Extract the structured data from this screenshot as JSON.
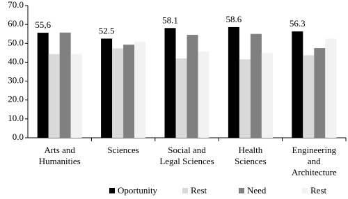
{
  "chart_data": {
    "type": "bar",
    "categories": [
      "Arts and\nHumanities",
      "Sciences",
      "Social and\nLegal Sciences",
      "Health\nSciences",
      "Engineering\nand\nArchitecture"
    ],
    "series": [
      {
        "name": "Oportunity",
        "color": "#000000",
        "values": [
          55.6,
          52.5,
          58.1,
          58.6,
          56.3
        ],
        "value_labels": [
          "55,6",
          "52.5",
          "58.1",
          "58.6",
          "56.3"
        ]
      },
      {
        "name": "Rest",
        "color": "#d9d9d9",
        "values": [
          44.3,
          47.3,
          42.0,
          41.5,
          43.7
        ]
      },
      {
        "name": "Need",
        "color": "#808080",
        "values": [
          55.7,
          49.3,
          54.5,
          55.0,
          47.5
        ]
      },
      {
        "name": "Rest",
        "color": "#f2f2f2",
        "values": [
          44.3,
          50.8,
          45.7,
          45.0,
          52.5
        ]
      }
    ],
    "ylim": [
      0,
      70
    ],
    "yticks": [
      {
        "value": 0,
        "label": "0.0"
      },
      {
        "value": 10,
        "label": "10.0"
      },
      {
        "value": 20,
        "label": "20.0"
      },
      {
        "value": 30,
        "label": "30.0"
      },
      {
        "value": 40,
        "label": "40.0"
      },
      {
        "value": 50,
        "label": "50.0"
      },
      {
        "value": 60,
        "label": "60.0"
      },
      {
        "value": 70,
        "label": "70.0"
      }
    ],
    "grid": false
  }
}
